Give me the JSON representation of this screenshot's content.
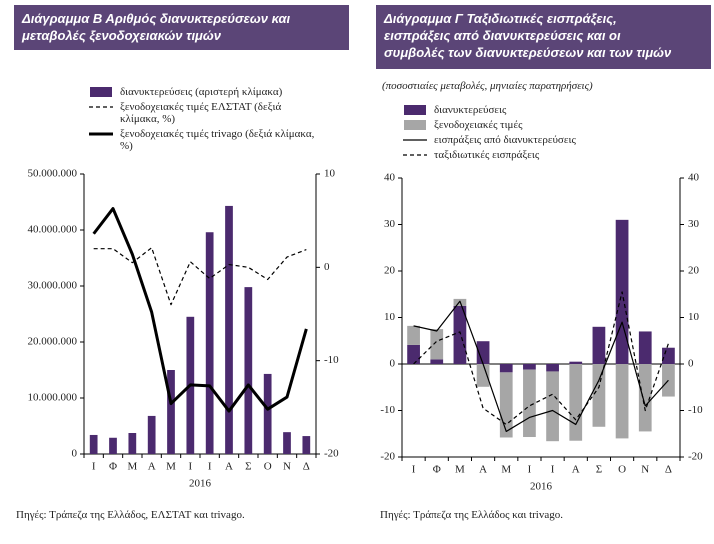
{
  "chart_data": [
    {
      "type": "bar",
      "title": [
        "Διάγραμμα Β  Αριθμός διανυκτερεύσεων και",
        "μεταβολές ξενοδοχειακών τιμών"
      ],
      "categories": [
        "Ι",
        "Φ",
        "Μ",
        "Α",
        "Μ",
        "Ι",
        "Ι",
        "Α",
        "Σ",
        "Ο",
        "Ν",
        "Δ"
      ],
      "x_label": "2016",
      "ylim": [
        0,
        50000000
      ],
      "yticks": [
        0,
        {
          "value": 10000000,
          "label": "10.000.000"
        },
        {
          "value": 20000000,
          "label": "20.000.000"
        },
        {
          "value": 30000000,
          "label": "30.000.000"
        },
        {
          "value": 40000000,
          "label": "40.000.000"
        },
        {
          "value": 50000000,
          "label": "50.000.000"
        }
      ],
      "y2lim": [
        -20,
        10
      ],
      "y2ticks": [
        -20,
        -10,
        0,
        10
      ],
      "stacked": false,
      "series": [
        {
          "name": "διανυκτερεύσεις (αριστερή κλίμακα)",
          "type": "bar",
          "color": "#4b2a6e",
          "values": [
            3400000,
            2900000,
            3750000,
            6800000,
            15000000,
            24500000,
            39600000,
            44300000,
            29800000,
            14300000,
            3900000,
            3200000
          ]
        },
        {
          "name": "ξενοδοχειακές τιμές ΕΛΣΤΑΤ (δεξιά κλίμακα, %)",
          "type": "line",
          "axis": "y2",
          "dash": true,
          "line_width": 1.2,
          "color": "#000000",
          "values": [
            2.0,
            2.0,
            0.5,
            2.1,
            -4.0,
            0.6,
            -1.2,
            0.3,
            0,
            -1.3,
            1.1,
            1.9
          ]
        },
        {
          "name": "ξενοδοχειακές τιμές trivago (δεξιά κλίμακα, %)",
          "type": "line",
          "axis": "y2",
          "dash": false,
          "line_width": 3,
          "color": "#000000",
          "values": [
            3.6,
            6.3,
            1.4,
            -4.8,
            -14.6,
            -12.6,
            -12.7,
            -15.4,
            -12.6,
            -15.2,
            -13.9,
            -6.6
          ]
        }
      ],
      "source": "Πηγές: Τράπεζα της Ελλάδος, ΕΛΣΤΑΤ και trivago."
    },
    {
      "type": "bar",
      "title": [
        "Διάγραμμα Γ  Ταξιδιωτικές εισπράξεις,",
        "εισπράξεις από διανυκτερεύσεις και οι",
        "συμβολές των διανυκτερεύσεων και των τιμών"
      ],
      "subtitle": "(ποσοστιαίες μεταβολές, μηνιαίες παρατηρήσεις)",
      "categories": [
        "Ι",
        "Φ",
        "Μ",
        "Α",
        "Μ",
        "Ι",
        "Ι",
        "Α",
        "Σ",
        "Ο",
        "Ν",
        "Δ"
      ],
      "x_label": "2016",
      "ylim": [
        -20,
        40
      ],
      "yticks": [
        -20,
        -10,
        0,
        10,
        20,
        30,
        40
      ],
      "y2lim": [
        -20,
        40
      ],
      "y2ticks": [
        -20,
        -10,
        0,
        10,
        20,
        30,
        40
      ],
      "stacked": true,
      "series": [
        {
          "name": "διανυκτερεύσεις",
          "type": "bar",
          "color": "#4b2a6e",
          "values": [
            4.1,
            1.0,
            12.5,
            4.9,
            -1.8,
            -1.2,
            -1.6,
            0.5,
            8,
            31,
            7,
            3.5
          ]
        },
        {
          "name": "ξενοδοχειακές τιμές",
          "type": "bar",
          "color": "#a6a6a6",
          "values": [
            4.1,
            6.5,
            1.5,
            -4.9,
            -14,
            -14.5,
            -15,
            -16.5,
            -13.5,
            -16,
            -14.5,
            -7
          ]
        },
        {
          "name": "εισπράξεις από διανυκτερεύσεις",
          "type": "line",
          "dash": false,
          "line_width": 1.2,
          "color": "#000000",
          "values": [
            8.2,
            7.1,
            13.5,
            0,
            -14.5,
            -11.5,
            -10,
            -13,
            -3.5,
            9,
            -9,
            -3.5
          ]
        },
        {
          "name": "ταξιδιωτικές εισπράξεις",
          "type": "line",
          "dash": true,
          "line_width": 1.2,
          "color": "#000000",
          "values": [
            0,
            4.9,
            6.9,
            -9.5,
            -13,
            -9,
            -6.5,
            -12,
            -5,
            15.5,
            -10,
            4.4
          ]
        }
      ],
      "source": "Πηγές: Τράπεζα της Ελλάδος και trivago."
    }
  ]
}
